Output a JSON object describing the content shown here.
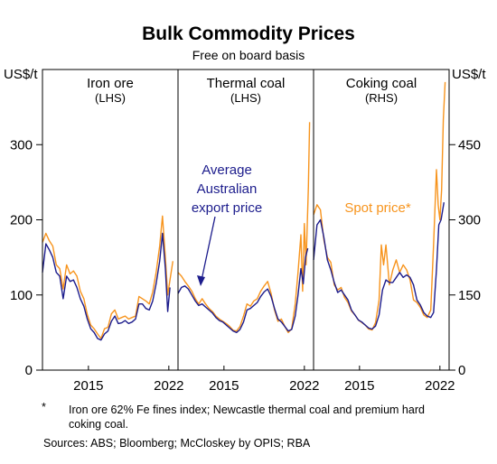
{
  "title": "Bulk Commodity Prices",
  "subtitle": "Free on board basis",
  "unit_left": "US$/t",
  "unit_right": "US$/t",
  "footnote_mark": "*",
  "footnote_text": "Iron ore 62% Fe fines index; Newcastle thermal coal and premium hard coking coal.",
  "sources": "Sources: ABS; Bloomberg; McCloskey by OPIS; RBA",
  "colors": {
    "spot": "#F7941D",
    "average": "#1C1C8C",
    "frame": "#000000",
    "grid": "#c8c8c8"
  },
  "chart_data": [
    {
      "type": "line",
      "panel": "Iron ore",
      "panel_label": "Iron ore",
      "axis_side": "(LHS)",
      "ylim": [
        0,
        400
      ],
      "yticks": [
        0,
        100,
        200,
        300
      ],
      "xlim": [
        2011,
        2022.8
      ],
      "xticks": [
        2015,
        2022
      ],
      "series": [
        {
          "key": "spot",
          "x": [
            2011.0,
            2011.3,
            2011.6,
            2011.9,
            2012.2,
            2012.5,
            2012.8,
            2013.1,
            2013.4,
            2013.7,
            2014.0,
            2014.3,
            2014.6,
            2014.9,
            2015.2,
            2015.5,
            2015.8,
            2016.1,
            2016.4,
            2016.7,
            2017.0,
            2017.3,
            2017.6,
            2017.9,
            2018.2,
            2018.5,
            2018.8,
            2019.1,
            2019.4,
            2019.7,
            2020.0,
            2020.3,
            2020.6,
            2020.9,
            2021.2,
            2021.45,
            2021.7,
            2021.9,
            2022.1,
            2022.35
          ],
          "y": [
            170,
            182,
            172,
            165,
            140,
            135,
            108,
            140,
            128,
            132,
            125,
            105,
            95,
            74,
            60,
            55,
            48,
            42,
            55,
            57,
            75,
            80,
            68,
            70,
            72,
            68,
            70,
            72,
            98,
            95,
            92,
            88,
            104,
            130,
            165,
            205,
            150,
            100,
            120,
            145
          ]
        },
        {
          "key": "average",
          "x": [
            2011.0,
            2011.3,
            2011.6,
            2011.9,
            2012.2,
            2012.5,
            2012.8,
            2013.1,
            2013.4,
            2013.7,
            2014.0,
            2014.3,
            2014.6,
            2014.9,
            2015.2,
            2015.5,
            2015.8,
            2016.1,
            2016.4,
            2016.7,
            2017.0,
            2017.3,
            2017.6,
            2017.9,
            2018.2,
            2018.5,
            2018.8,
            2019.1,
            2019.4,
            2019.7,
            2020.0,
            2020.3,
            2020.6,
            2020.9,
            2021.2,
            2021.45,
            2021.7,
            2021.9,
            2022.1
          ],
          "y": [
            130,
            168,
            160,
            150,
            130,
            125,
            95,
            125,
            118,
            120,
            110,
            95,
            85,
            68,
            55,
            50,
            42,
            40,
            48,
            52,
            65,
            72,
            62,
            63,
            66,
            62,
            64,
            68,
            88,
            88,
            82,
            80,
            92,
            115,
            145,
            182,
            135,
            78,
            110
          ]
        }
      ]
    },
    {
      "type": "line",
      "panel": "Thermal coal",
      "panel_label": "Thermal coal",
      "axis_side": "(LHS)",
      "ylim": [
        0,
        400
      ],
      "yticks": [
        0,
        100,
        200,
        300
      ],
      "xlim": [
        2011,
        2022.8
      ],
      "xticks": [
        2015,
        2022
      ],
      "annotation": [
        "Average",
        "Australian",
        "export price"
      ],
      "series": [
        {
          "key": "spot",
          "x": [
            2011.0,
            2011.3,
            2011.6,
            2011.9,
            2012.2,
            2012.5,
            2012.8,
            2013.1,
            2013.4,
            2013.7,
            2014.0,
            2014.3,
            2014.6,
            2014.9,
            2015.2,
            2015.5,
            2015.8,
            2016.1,
            2016.4,
            2016.7,
            2017.0,
            2017.3,
            2017.6,
            2017.9,
            2018.2,
            2018.5,
            2018.8,
            2019.1,
            2019.4,
            2019.7,
            2020.0,
            2020.3,
            2020.6,
            2020.9,
            2021.2,
            2021.45,
            2021.7,
            2021.85,
            2022.0,
            2022.15,
            2022.35,
            2022.45
          ],
          "y": [
            130,
            125,
            118,
            112,
            105,
            95,
            88,
            95,
            88,
            82,
            78,
            72,
            68,
            65,
            62,
            58,
            53,
            52,
            58,
            72,
            88,
            85,
            92,
            95,
            105,
            112,
            118,
            102,
            80,
            65,
            68,
            58,
            50,
            55,
            88,
            130,
            180,
            105,
            195,
            140,
            245,
            330
          ]
        },
        {
          "key": "average",
          "x": [
            2011.0,
            2011.3,
            2011.6,
            2011.9,
            2012.2,
            2012.5,
            2012.8,
            2013.1,
            2013.4,
            2013.7,
            2014.0,
            2014.3,
            2014.6,
            2014.9,
            2015.2,
            2015.5,
            2015.8,
            2016.1,
            2016.4,
            2016.7,
            2017.0,
            2017.3,
            2017.6,
            2017.9,
            2018.2,
            2018.5,
            2018.8,
            2019.1,
            2019.4,
            2019.7,
            2020.0,
            2020.3,
            2020.6,
            2020.9,
            2021.2,
            2021.45,
            2021.7,
            2021.9,
            2022.1,
            2022.3
          ],
          "y": [
            102,
            110,
            112,
            108,
            100,
            92,
            86,
            88,
            84,
            80,
            76,
            70,
            66,
            64,
            60,
            56,
            52,
            50,
            54,
            64,
            80,
            82,
            86,
            90,
            98,
            104,
            108,
            98,
            82,
            68,
            64,
            58,
            52,
            54,
            72,
            100,
            135,
            115,
            150,
            162
          ]
        }
      ]
    },
    {
      "type": "line",
      "panel": "Coking coal",
      "panel_label": "Coking coal",
      "axis_side": "(RHS)",
      "ylim": [
        0,
        600
      ],
      "yticks": [
        0,
        150,
        300,
        450
      ],
      "xlim": [
        2011,
        2022.8
      ],
      "xticks": [
        2015,
        2022
      ],
      "annotation": [
        "Spot price*"
      ],
      "series": [
        {
          "key": "spot",
          "x": [
            2011.0,
            2011.3,
            2011.6,
            2011.9,
            2012.2,
            2012.5,
            2012.8,
            2013.1,
            2013.4,
            2013.7,
            2014.0,
            2014.3,
            2014.6,
            2014.9,
            2015.2,
            2015.5,
            2015.8,
            2016.1,
            2016.4,
            2016.7,
            2016.9,
            2017.1,
            2017.3,
            2017.6,
            2017.9,
            2018.2,
            2018.5,
            2018.8,
            2019.1,
            2019.4,
            2019.7,
            2020.0,
            2020.3,
            2020.6,
            2020.9,
            2021.2,
            2021.45,
            2021.7,
            2021.85,
            2022.0,
            2022.15,
            2022.3,
            2022.45
          ],
          "y": [
            310,
            330,
            320,
            260,
            225,
            215,
            170,
            160,
            165,
            145,
            135,
            118,
            110,
            100,
            95,
            90,
            82,
            80,
            95,
            140,
            250,
            210,
            250,
            170,
            200,
            220,
            195,
            210,
            200,
            180,
            140,
            135,
            125,
            110,
            105,
            120,
            250,
            400,
            330,
            300,
            360,
            500,
            575
          ]
        },
        {
          "key": "average",
          "x": [
            2011.0,
            2011.3,
            2011.6,
            2011.9,
            2012.2,
            2012.5,
            2012.8,
            2013.1,
            2013.4,
            2013.7,
            2014.0,
            2014.3,
            2014.6,
            2014.9,
            2015.2,
            2015.5,
            2015.8,
            2016.1,
            2016.4,
            2016.7,
            2017.0,
            2017.3,
            2017.6,
            2017.9,
            2018.2,
            2018.5,
            2018.8,
            2019.1,
            2019.4,
            2019.7,
            2020.0,
            2020.3,
            2020.6,
            2020.9,
            2021.2,
            2021.45,
            2021.7,
            2021.9,
            2022.1,
            2022.35
          ],
          "y": [
            220,
            290,
            300,
            265,
            220,
            200,
            175,
            155,
            160,
            150,
            140,
            120,
            110,
            100,
            96,
            90,
            84,
            82,
            88,
            110,
            160,
            180,
            175,
            175,
            185,
            195,
            185,
            190,
            185,
            170,
            140,
            130,
            115,
            108,
            105,
            115,
            200,
            290,
            300,
            335
          ]
        }
      ]
    }
  ]
}
